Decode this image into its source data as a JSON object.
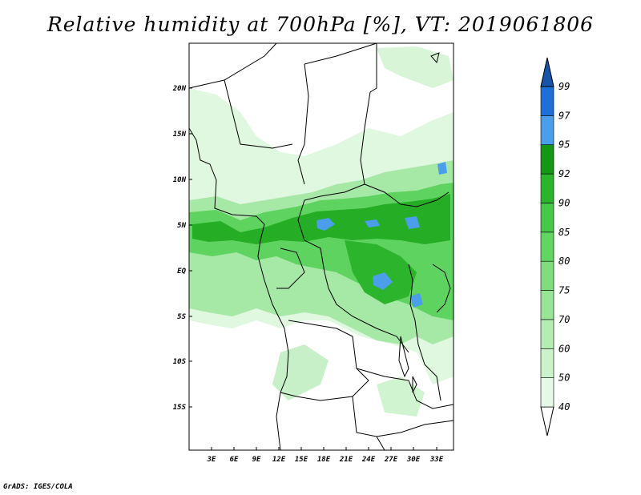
{
  "title": "Relative humidity at 700hPa [%], VT: 2019061806",
  "credit": "GrADS: IGES/COLA",
  "lon_labels": [
    "3E",
    "6E",
    "9E",
    "12E",
    "15E",
    "18E",
    "21E",
    "24E",
    "27E",
    "30E",
    "33E"
  ],
  "lat_labels": [
    "20N",
    "15N",
    "10N",
    "5N",
    "EQ",
    "5S",
    "10S",
    "15S"
  ],
  "colorbar": {
    "levels": [
      "40",
      "50",
      "60",
      "70",
      "75",
      "80",
      "85",
      "90",
      "92",
      "95",
      "97",
      "99"
    ],
    "colors": [
      "#e6f9e6",
      "#ccf2cc",
      "#b4ecb4",
      "#98e598",
      "#7fdd7f",
      "#62d562",
      "#48c848",
      "#2db42d",
      "#159615",
      "#4a9eea",
      "#1e6fd8",
      "#1556a8"
    ]
  },
  "map_colors": {
    "light": "#d8f5d8",
    "mid": "#9ee69e",
    "green": "#5ad25a",
    "dark": "#22aa22",
    "blue": "#4a9eea",
    "border": "#000000"
  }
}
